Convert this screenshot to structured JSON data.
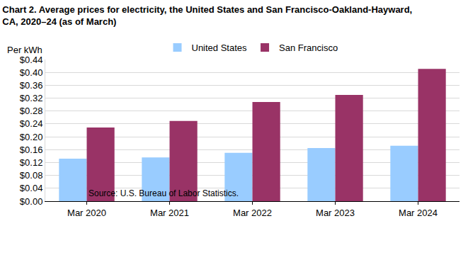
{
  "chart_data": {
    "type": "bar",
    "title": "Chart 2. Average prices for electricity, the United States and San Francisco-Oakland-Hayward,\nCA, 2020–24 (as of March)",
    "y_label": "Per kWh",
    "annotations": [
      "Source: U.S. Bureau of Labor Statistics."
    ],
    "categories": [
      "Mar 2020",
      "Mar 2021",
      "Mar 2022",
      "Mar 2023",
      "Mar 2024"
    ],
    "series": [
      {
        "name": "United States",
        "color": "#99ccff",
        "values": [
          0.132,
          0.136,
          0.15,
          0.165,
          0.172
        ]
      },
      {
        "name": "San Francisco",
        "color": "#993366",
        "values": [
          0.229,
          0.249,
          0.308,
          0.33,
          0.411
        ]
      }
    ],
    "ylim": [
      0,
      0.44
    ],
    "yticks": [
      {
        "value": 0,
        "label": "$0.00"
      },
      {
        "value": 0.04,
        "label": "$0.04"
      },
      {
        "value": 0.08,
        "label": "$0.08"
      },
      {
        "value": 0.12,
        "label": "$0.12"
      },
      {
        "value": 0.16,
        "label": "$0.16"
      },
      {
        "value": 0.2,
        "label": "$0.20"
      },
      {
        "value": 0.24,
        "label": "$0.24"
      },
      {
        "value": 0.28,
        "label": "$0.28"
      },
      {
        "value": 0.32,
        "label": "$0.32"
      },
      {
        "value": 0.36,
        "label": "$0.36"
      },
      {
        "value": 0.4,
        "label": "$0.40"
      },
      {
        "value": 0.44,
        "label": "$0.44"
      }
    ],
    "grid": true,
    "legend": "top"
  }
}
